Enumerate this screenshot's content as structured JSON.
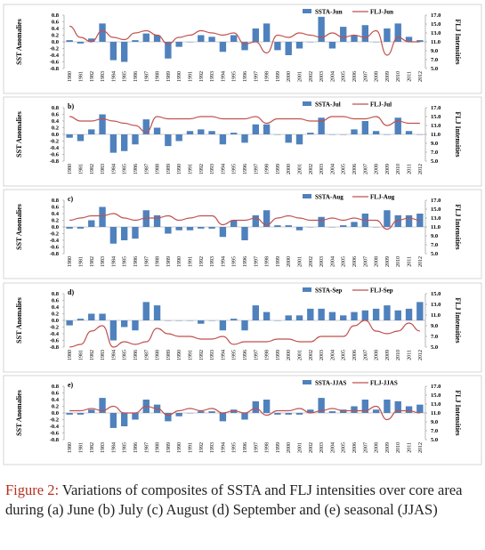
{
  "chart_data": [
    {
      "type": "combo",
      "ylabel": "SST Anomalies",
      "y2label": "FLJ Intensities",
      "categories": [
        "1980",
        "1981",
        "1982",
        "1983",
        "1984",
        "1985",
        "1986",
        "1987",
        "1988",
        "1989",
        "1990",
        "1991",
        "1992",
        "1993",
        "1994",
        "1995",
        "1996",
        "1997",
        "1998",
        "1999",
        "2000",
        "2001",
        "2002",
        "2003",
        "2004",
        "2005",
        "2006",
        "2007",
        "2008",
        "2009",
        "2010",
        "2011",
        "2012"
      ],
      "series": [
        {
          "name": "SSTA-Jun",
          "type": "bar",
          "color": "#4f81bd",
          "values": [
            0.05,
            -0.05,
            0.1,
            0.55,
            -0.55,
            -0.6,
            0.05,
            0.25,
            0.2,
            -0.5,
            -0.15,
            0.0,
            0.2,
            0.15,
            -0.3,
            0.2,
            -0.25,
            0.4,
            0.55,
            -0.25,
            -0.4,
            -0.2,
            0.0,
            0.75,
            -0.2,
            0.45,
            0.2,
            0.5,
            0.0,
            0.4,
            0.55,
            0.15,
            0.05
          ]
        },
        {
          "name": "FLJ-Jun",
          "type": "line",
          "axis": "y2",
          "color": "#c0504d",
          "values": [
            14.5,
            12,
            11,
            13.5,
            12,
            11.5,
            13,
            13.5,
            12.5,
            10.5,
            12,
            12.5,
            13.5,
            13,
            12.5,
            13,
            10.5,
            11,
            8.5,
            12.5,
            12,
            13,
            12.5,
            12,
            13,
            12,
            12.5,
            12,
            13.5,
            8,
            12,
            11,
            11
          ]
        }
      ],
      "ylim": [
        -0.8,
        0.8
      ],
      "yticks": [
        0.8,
        0.6,
        0.4,
        0.2,
        {
          "value": 0,
          "label": "0.0"
        },
        -0.2,
        -0.4,
        -0.6,
        -0.8
      ],
      "y2lim": [
        5,
        17
      ],
      "y2ticks": [
        {
          "value": 17,
          "label": "17.0"
        },
        {
          "value": 15,
          "label": "15.0"
        },
        {
          "value": 13,
          "label": "13.0"
        },
        {
          "value": 11,
          "label": "11.0"
        },
        {
          "value": 9,
          "label": "9.0"
        },
        {
          "value": 7,
          "label": "7.0"
        },
        {
          "value": 5,
          "label": "5.0"
        }
      ]
    },
    {
      "type": "combo",
      "panel_label": "b)",
      "ylabel": "SST Anomalies",
      "y2label": "FLJ Intensities",
      "categories": [
        "1980",
        "1981",
        "1982",
        "1983",
        "1984",
        "1985",
        "1986",
        "1987",
        "1988",
        "1989",
        "1990",
        "1991",
        "1992",
        "1993",
        "1994",
        "1995",
        "1996",
        "1997",
        "1998",
        "1999",
        "2000",
        "2001",
        "2002",
        "2003",
        "2004",
        "2005",
        "2006",
        "2007",
        "2008",
        "2009",
        "2010",
        "2011",
        "2012"
      ],
      "series": [
        {
          "name": "SSTA-Jul",
          "type": "bar",
          "color": "#4f81bd",
          "values": [
            -0.1,
            -0.2,
            0.15,
            0.6,
            -0.55,
            -0.5,
            -0.3,
            0.45,
            0.2,
            -0.35,
            -0.2,
            0.1,
            0.15,
            0.1,
            -0.3,
            0.05,
            -0.25,
            0.3,
            0.3,
            0.0,
            -0.25,
            -0.3,
            0.05,
            0.5,
            0.0,
            0.0,
            0.15,
            0.4,
            0.1,
            0.0,
            0.5,
            0.1,
            0.0
          ]
        },
        {
          "name": "FLJ-Jul",
          "type": "line",
          "axis": "y2",
          "color": "#c0504d",
          "values": [
            15,
            14,
            14,
            14.5,
            14,
            13.5,
            13,
            11.5,
            15,
            14.5,
            14.5,
            14.5,
            15,
            15,
            14.5,
            14.5,
            14.5,
            15,
            13.5,
            14.5,
            14.5,
            14.5,
            14,
            14,
            15,
            15,
            14.5,
            14.5,
            15,
            13,
            14,
            13.5,
            13.5
          ]
        }
      ],
      "ylim": [
        -0.8,
        0.8
      ],
      "yticks": [
        0.8,
        0.6,
        0.4,
        0.2,
        {
          "value": 0,
          "label": "0.0"
        },
        -0.2,
        -0.4,
        -0.6,
        -0.8
      ],
      "y2lim": [
        5,
        17
      ],
      "y2ticks": [
        {
          "value": 17,
          "label": "17.0"
        },
        {
          "value": 15,
          "label": "15.0"
        },
        {
          "value": 13,
          "label": "13.0"
        },
        {
          "value": 11,
          "label": "11.0"
        },
        {
          "value": 9,
          "label": "9.0"
        },
        {
          "value": 7,
          "label": "7.0"
        },
        {
          "value": 5,
          "label": "5.0"
        }
      ]
    },
    {
      "type": "combo",
      "panel_label": "c)",
      "ylabel": "SST Anomalies",
      "y2label": "FLJ Intensities",
      "categories": [
        "1980",
        "1981",
        "1982",
        "1983",
        "1984",
        "1985",
        "1986",
        "1987",
        "1988",
        "1989",
        "1990",
        "1991",
        "1992",
        "1993",
        "1994",
        "1995",
        "1996",
        "1997",
        "1998",
        "1999",
        "2000",
        "2001",
        "2002",
        "2003",
        "2004",
        "2005",
        "2006",
        "2007",
        "2008",
        "2009",
        "2010",
        "2011",
        "2012"
      ],
      "series": [
        {
          "name": "SSTA-Aug",
          "type": "bar",
          "color": "#4f81bd",
          "values": [
            -0.05,
            -0.05,
            0.2,
            0.6,
            -0.5,
            -0.4,
            -0.35,
            0.5,
            0.35,
            -0.2,
            -0.1,
            -0.1,
            -0.05,
            -0.05,
            -0.3,
            0.2,
            -0.4,
            0.35,
            0.5,
            0.05,
            0.05,
            -0.1,
            0.0,
            0.3,
            0.0,
            0.05,
            0.15,
            0.4,
            0.0,
            0.5,
            0.35,
            0.35,
            0.4
          ]
        },
        {
          "name": "FLJ-Aug",
          "type": "line",
          "axis": "y2",
          "color": "#c0504d",
          "values": [
            12.5,
            13,
            13.5,
            13.5,
            14,
            13,
            12.5,
            13,
            13,
            13.5,
            12.5,
            13,
            13.5,
            13.5,
            11.5,
            12.5,
            12.5,
            13,
            11.5,
            13,
            13.5,
            13,
            12.5,
            12.5,
            13,
            12.5,
            13,
            12.5,
            12.5,
            10.5,
            12.5,
            13,
            12.5
          ]
        }
      ],
      "ylim": [
        -0.8,
        0.8
      ],
      "yticks": [
        0.8,
        0.6,
        0.4,
        0.2,
        {
          "value": 0,
          "label": "0.0"
        },
        -0.2,
        -0.4,
        -0.6,
        -0.8
      ],
      "y2lim": [
        5,
        17
      ],
      "y2ticks": [
        {
          "value": 17,
          "label": "17.0"
        },
        {
          "value": 15,
          "label": "15.0"
        },
        {
          "value": 13,
          "label": "13.0"
        },
        {
          "value": 11,
          "label": "11.0"
        },
        {
          "value": 9,
          "label": "9.0"
        },
        {
          "value": 7,
          "label": "7.0"
        },
        {
          "value": 5,
          "label": "5.0"
        }
      ]
    },
    {
      "type": "combo",
      "panel_label": "d)",
      "ylabel": "SST Anomalies",
      "y2label": "FLJ Intensities",
      "categories": [
        "1980",
        "1981",
        "1982",
        "1983",
        "1984",
        "1985",
        "1986",
        "1987",
        "1988",
        "1989",
        "1990",
        "1991",
        "1992",
        "1993",
        "1994",
        "1995",
        "1996",
        "1997",
        "1998",
        "1999",
        "2000",
        "2001",
        "2002",
        "2003",
        "2004",
        "2005",
        "2006",
        "2007",
        "2008",
        "2009",
        "2010",
        "2011",
        "2012"
      ],
      "series": [
        {
          "name": "SSTA-Sep",
          "type": "bar",
          "color": "#4f81bd",
          "values": [
            -0.15,
            0.05,
            0.2,
            0.2,
            -0.6,
            -0.2,
            -0.3,
            0.55,
            0.45,
            0.0,
            0.0,
            0.0,
            -0.1,
            0.0,
            -0.3,
            0.05,
            -0.3,
            0.45,
            0.25,
            0.0,
            0.15,
            0.15,
            0.35,
            0.35,
            0.25,
            0.15,
            0.25,
            0.3,
            0.35,
            0.45,
            0.3,
            0.35,
            0.55
          ]
        },
        {
          "name": "FLJ-Sep",
          "type": "line",
          "axis": "y2",
          "color": "#c0504d",
          "values": [
            5,
            5.5,
            8,
            9,
            5,
            6,
            5.5,
            6,
            8.5,
            7.5,
            7,
            7,
            6.5,
            6.5,
            7,
            5.5,
            6,
            6,
            6,
            6.5,
            6.5,
            6,
            6,
            7,
            7,
            7,
            9,
            10,
            8,
            7.5,
            8,
            9.5,
            8
          ]
        }
      ],
      "ylim": [
        -0.8,
        0.8
      ],
      "yticks": [
        0.8,
        0.6,
        0.4,
        0.2,
        {
          "value": 0,
          "label": "0.0"
        },
        -0.2,
        -0.4,
        -0.6,
        -0.8
      ],
      "y2lim": [
        5,
        15
      ],
      "y2ticks": [
        {
          "value": 15,
          "label": "15.0"
        },
        {
          "value": 13,
          "label": "13.0"
        },
        {
          "value": 11,
          "label": "11.0"
        },
        {
          "value": 9,
          "label": "9.0"
        },
        {
          "value": 7,
          "label": "7.0"
        },
        {
          "value": 5,
          "label": "5.0"
        }
      ]
    },
    {
      "type": "combo",
      "panel_label": "e)",
      "ylabel": "SST Anomalies",
      "y2label": "FLJ Intensities",
      "categories": [
        "1980",
        "1981",
        "1982",
        "1983",
        "1984",
        "1985",
        "1986",
        "1987",
        "1988",
        "1989",
        "1990",
        "1991",
        "1992",
        "1993",
        "1994",
        "1995",
        "1996",
        "1997",
        "1998",
        "1999",
        "2000",
        "2001",
        "2002",
        "2003",
        "2004",
        "2005",
        "2006",
        "2007",
        "2008",
        "2009",
        "2010",
        "2011",
        "2012"
      ],
      "series": [
        {
          "name": "SSTA-JJAS",
          "type": "bar",
          "color": "#4f81bd",
          "values": [
            -0.05,
            -0.05,
            0.1,
            0.45,
            -0.45,
            -0.4,
            -0.2,
            0.4,
            0.25,
            -0.25,
            -0.1,
            0.0,
            0.05,
            0.05,
            -0.25,
            0.1,
            -0.2,
            0.35,
            0.4,
            -0.05,
            -0.05,
            -0.05,
            0.1,
            0.45,
            0.05,
            0.1,
            0.2,
            0.4,
            0.1,
            0.4,
            0.35,
            0.2,
            0.25
          ]
        },
        {
          "name": "FLJ-JJAS",
          "type": "line",
          "axis": "y2",
          "color": "#c0504d",
          "values": [
            11.5,
            11.5,
            12,
            11.5,
            12.5,
            11,
            11,
            12.5,
            12,
            10.5,
            11.5,
            12,
            11.5,
            12,
            11,
            11.5,
            11,
            12,
            10.5,
            11.5,
            11.5,
            12,
            11,
            11.5,
            12,
            11.5,
            11.5,
            11.5,
            12.5,
            9.5,
            11.5,
            11.5,
            11
          ]
        }
      ],
      "ylim": [
        -0.8,
        0.8
      ],
      "yticks": [
        0.8,
        0.6,
        0.4,
        0.2,
        {
          "value": 0,
          "label": "0.0"
        },
        -0.2,
        -0.4,
        -0.6,
        -0.8
      ],
      "y2lim": [
        5,
        17
      ],
      "y2ticks": [
        {
          "value": 17,
          "label": "17.0"
        },
        {
          "value": 15,
          "label": "15.0"
        },
        {
          "value": 13,
          "label": "13.0"
        },
        {
          "value": 11,
          "label": "11.0"
        },
        {
          "value": 9,
          "label": "9.0"
        },
        {
          "value": 7,
          "label": "7.0"
        },
        {
          "value": 5,
          "label": "5.0"
        }
      ]
    }
  ],
  "caption": {
    "label": "Figure 2:",
    "text": "Variations of composites of SSTA and FLJ intensities over core area during (a) June (b) July (c) August (d) September and (e) seasonal (JJAS)"
  }
}
